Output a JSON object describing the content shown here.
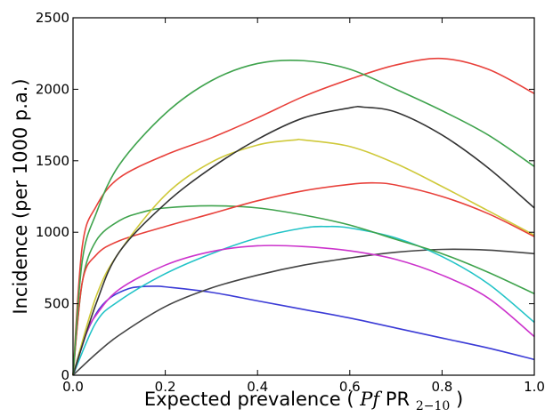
{
  "chart_data": {
    "type": "line",
    "title": "",
    "xlabel": {
      "prefix": "Expected prevalence ",
      "open": "(",
      "italic": "Pf",
      "roman": "PR",
      "sub": "2−10",
      "close": ")"
    },
    "ylabel": "Incidence (per 1000 p.a.)",
    "xlim": [
      0,
      1
    ],
    "ylim": [
      0,
      2500
    ],
    "grid": false,
    "x_ticks": [
      0.0,
      0.2,
      0.4,
      0.6,
      0.8,
      1.0
    ],
    "x_tick_labels": [
      "0.0",
      "0.2",
      "0.4",
      "0.6",
      "0.8",
      "1.0"
    ],
    "y_ticks": [
      0,
      500,
      1000,
      1500,
      2000,
      2500
    ],
    "y_tick_labels": [
      "0",
      "500",
      "1000",
      "1500",
      "2000",
      "2500"
    ],
    "series": [
      {
        "color": "#3b3bd6",
        "x": [
          0,
          0.02,
          0.05,
          0.08,
          0.12,
          0.15,
          0.18,
          0.2,
          0.3,
          0.4,
          0.5,
          0.6,
          0.7,
          0.8,
          0.9,
          1.0
        ],
        "y": [
          0,
          220,
          430,
          540,
          605,
          620,
          622,
          618,
          580,
          520,
          460,
          400,
          330,
          260,
          190,
          110
        ]
      },
      {
        "color": "#444444",
        "x": [
          0,
          0.05,
          0.1,
          0.2,
          0.3,
          0.4,
          0.5,
          0.6,
          0.7,
          0.8,
          0.9,
          1.0
        ],
        "y": [
          0,
          150,
          280,
          480,
          610,
          700,
          770,
          820,
          860,
          880,
          875,
          850
        ]
      },
      {
        "color": "#22c3c7",
        "x": [
          0,
          0.05,
          0.1,
          0.2,
          0.3,
          0.4,
          0.5,
          0.55,
          0.6,
          0.7,
          0.8,
          0.9,
          1.0
        ],
        "y": [
          0,
          370,
          520,
          710,
          850,
          960,
          1030,
          1040,
          1030,
          960,
          830,
          640,
          370
        ]
      },
      {
        "color": "#cc33cc",
        "x": [
          0,
          0.03,
          0.05,
          0.1,
          0.2,
          0.3,
          0.4,
          0.5,
          0.6,
          0.7,
          0.8,
          0.9,
          1.0
        ],
        "y": [
          0,
          300,
          420,
          600,
          770,
          865,
          905,
          900,
          870,
          810,
          700,
          540,
          270
        ]
      },
      {
        "color": "#3fa34d",
        "x": [
          0,
          0.02,
          0.05,
          0.1,
          0.15,
          0.2,
          0.3,
          0.4,
          0.5,
          0.6,
          0.7,
          0.8,
          0.9,
          1.0
        ],
        "y": [
          0,
          650,
          940,
          1080,
          1140,
          1170,
          1185,
          1170,
          1120,
          1050,
          950,
          850,
          720,
          570
        ]
      },
      {
        "color": "#e8403a",
        "x": [
          0,
          0.02,
          0.05,
          0.1,
          0.2,
          0.3,
          0.4,
          0.5,
          0.6,
          0.65,
          0.7,
          0.8,
          0.9,
          1.0
        ],
        "y": [
          0,
          650,
          840,
          940,
          1040,
          1130,
          1220,
          1290,
          1335,
          1345,
          1330,
          1250,
          1130,
          970
        ]
      },
      {
        "color": "#cfc93a",
        "x": [
          0,
          0.05,
          0.1,
          0.2,
          0.3,
          0.4,
          0.48,
          0.5,
          0.6,
          0.7,
          0.8,
          0.9,
          1.0
        ],
        "y": [
          0,
          550,
          860,
          1260,
          1490,
          1610,
          1645,
          1645,
          1600,
          1480,
          1320,
          1150,
          980
        ]
      },
      {
        "color": "#333333",
        "x": [
          0,
          0.05,
          0.1,
          0.2,
          0.3,
          0.4,
          0.5,
          0.6,
          0.63,
          0.7,
          0.8,
          0.9,
          1.0
        ],
        "y": [
          0,
          500,
          860,
          1200,
          1450,
          1650,
          1800,
          1870,
          1875,
          1840,
          1680,
          1450,
          1170
        ]
      },
      {
        "color": "#e8403a",
        "x": [
          0,
          0.02,
          0.05,
          0.1,
          0.2,
          0.3,
          0.4,
          0.5,
          0.6,
          0.7,
          0.8,
          0.9,
          1.0
        ],
        "y": [
          0,
          900,
          1180,
          1380,
          1540,
          1660,
          1800,
          1950,
          2070,
          2170,
          2215,
          2140,
          1970
        ]
      },
      {
        "color": "#3fa34d",
        "x": [
          0,
          0.02,
          0.05,
          0.1,
          0.2,
          0.3,
          0.4,
          0.5,
          0.6,
          0.7,
          0.8,
          0.9,
          1.0
        ],
        "y": [
          0,
          800,
          1130,
          1470,
          1830,
          2060,
          2180,
          2200,
          2140,
          2000,
          1850,
          1680,
          1460
        ]
      }
    ]
  }
}
